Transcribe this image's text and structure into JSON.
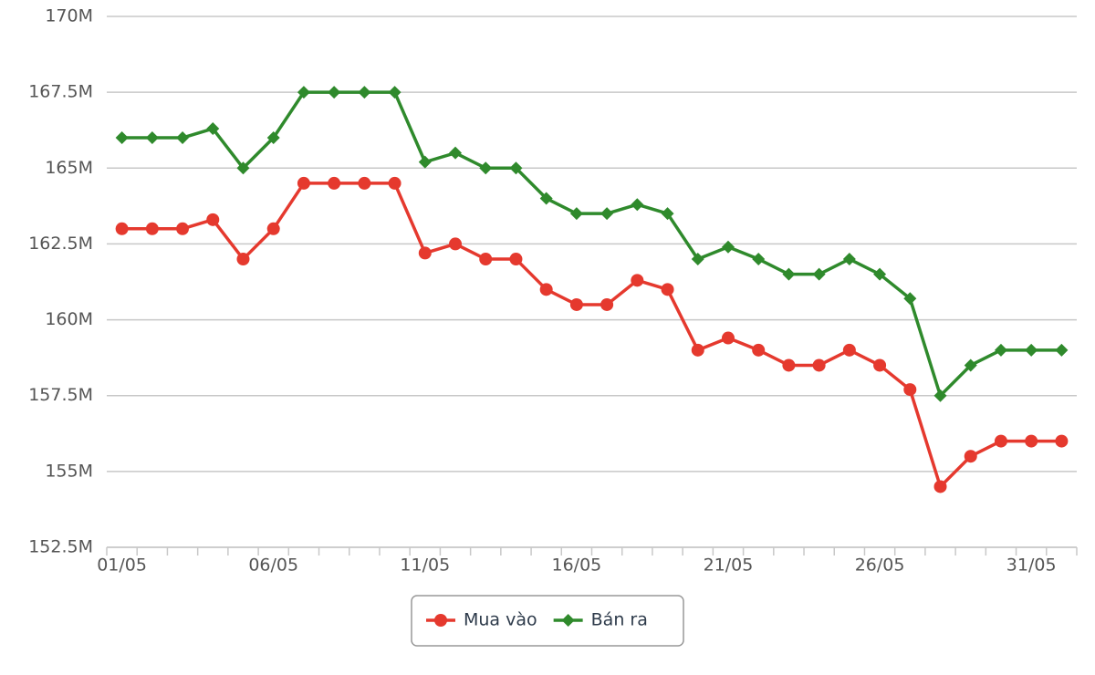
{
  "chart_data": {
    "type": "line",
    "categories": [
      "01/05",
      null,
      null,
      null,
      null,
      "06/05",
      null,
      null,
      null,
      null,
      "11/05",
      null,
      null,
      null,
      null,
      "16/05",
      null,
      null,
      null,
      null,
      "21/05",
      null,
      null,
      null,
      null,
      "26/05",
      null,
      null,
      null,
      null,
      "31/05",
      null
    ],
    "series": [
      {
        "name": "Mua vào",
        "color": "#e5392e",
        "marker": "circle",
        "values": [
          163,
          163,
          163,
          163.3,
          162,
          163,
          164.5,
          164.5,
          164.5,
          164.5,
          162.2,
          162.5,
          162,
          162,
          161,
          160.5,
          160.5,
          161.3,
          161,
          159,
          159.4,
          159,
          158.5,
          158.5,
          159,
          158.5,
          157.7,
          154.5,
          155.5,
          156,
          156,
          156
        ]
      },
      {
        "name": "Bán ra",
        "color": "#2f8a2c",
        "marker": "diamond",
        "values": [
          166,
          166,
          166,
          166.3,
          165,
          166,
          167.5,
          167.5,
          167.5,
          167.5,
          165.2,
          165.5,
          165,
          165,
          164,
          163.5,
          163.5,
          163.8,
          163.5,
          162,
          162.4,
          162,
          161.5,
          161.5,
          162,
          161.5,
          160.7,
          157.5,
          158.5,
          159,
          159,
          159
        ]
      }
    ],
    "ylim": [
      152.5,
      170
    ],
    "yticks": [
      {
        "value": 152.5,
        "label": "152.5M"
      },
      {
        "value": 155,
        "label": "155M"
      },
      {
        "value": 157.5,
        "label": "157.5M"
      },
      {
        "value": 160,
        "label": "160M"
      },
      {
        "value": 162.5,
        "label": "162.5M"
      },
      {
        "value": 165,
        "label": "165M"
      },
      {
        "value": 167.5,
        "label": "167.5M"
      },
      {
        "value": 170,
        "label": "170M"
      }
    ],
    "grid": true,
    "legend": "bottom"
  }
}
